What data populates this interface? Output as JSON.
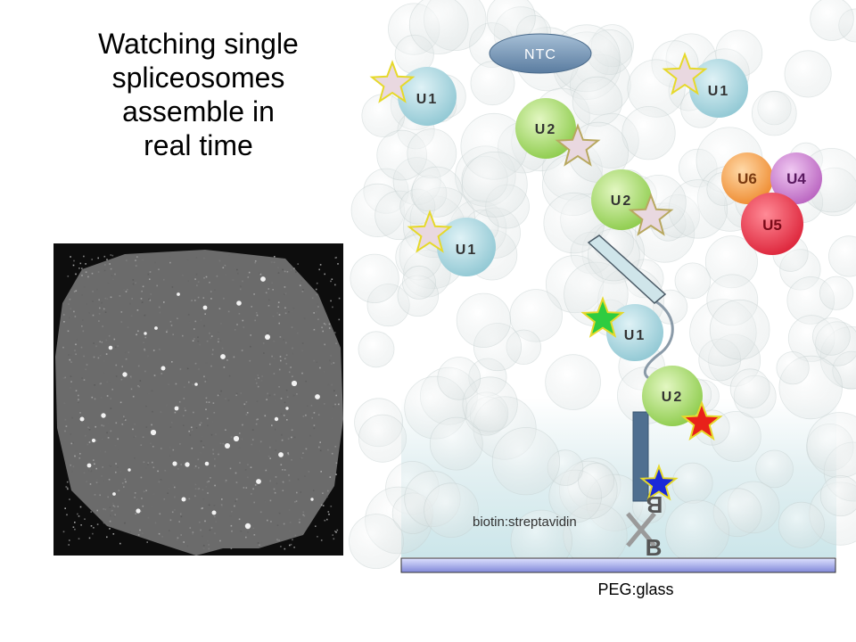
{
  "slide": {
    "title_lines": [
      "Watching single",
      "spliceosomes",
      "assemble in",
      "real time"
    ]
  },
  "diagram": {
    "labels": {
      "ntc": "NTC",
      "u1": "U1",
      "u2": "U2",
      "u6": "U6",
      "u4": "U4",
      "u5": "U5",
      "biotin_letter": "B",
      "biotin_streptavidin": "biotin:streptavidin",
      "peg_glass": "PEG:glass"
    },
    "colors": {
      "u1": "#a9d6df",
      "u2": "#a6dc6a",
      "u6": "#f4a04a",
      "u4": "#c77ccc",
      "u5": "#e8344a",
      "ntc": "#6f8fb2",
      "star_green": "#2ecc40",
      "star_red": "#e8211a",
      "star_blue": "#1a2ad8",
      "star_faded": "#e9d8e0",
      "rna_bar": "#4f6f90",
      "glass": "#9aa0e0"
    }
  }
}
